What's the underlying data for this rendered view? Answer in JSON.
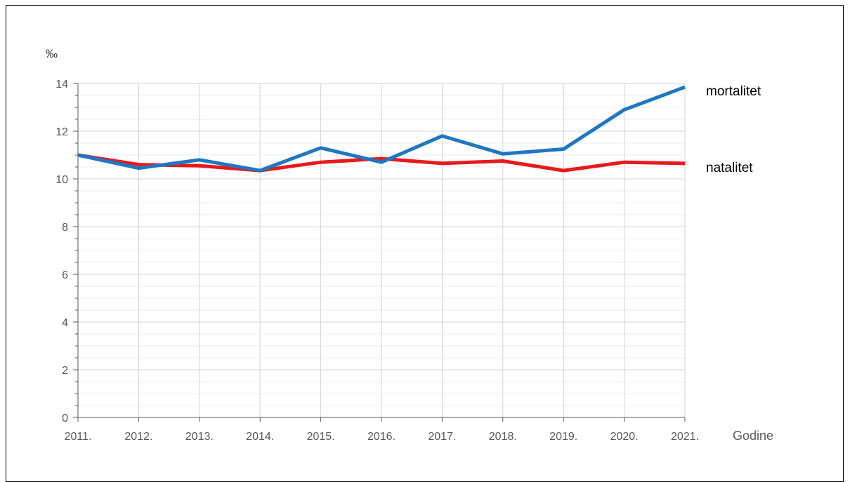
{
  "chart_data": {
    "type": "line",
    "ylabel": "‰",
    "xlabel": "Godine",
    "categories": [
      "2011.",
      "2012.",
      "2013.",
      "2014.",
      "2015.",
      "2016.",
      "2017.",
      "2018.",
      "2019.",
      "2020.",
      "2021."
    ],
    "ylim": [
      0,
      14
    ],
    "yticks": [
      0,
      2,
      4,
      6,
      8,
      10,
      12,
      14
    ],
    "grid": true,
    "series": [
      {
        "name": "mortalitet",
        "color": "#1f77c4",
        "values": [
          11.0,
          10.45,
          10.8,
          10.35,
          11.3,
          10.7,
          11.8,
          11.05,
          11.25,
          12.9,
          13.85
        ]
      },
      {
        "name": "natalitet",
        "color": "#e8191c",
        "values": [
          11.0,
          10.6,
          10.55,
          10.35,
          10.7,
          10.85,
          10.65,
          10.75,
          10.35,
          10.7,
          10.65
        ]
      }
    ]
  }
}
